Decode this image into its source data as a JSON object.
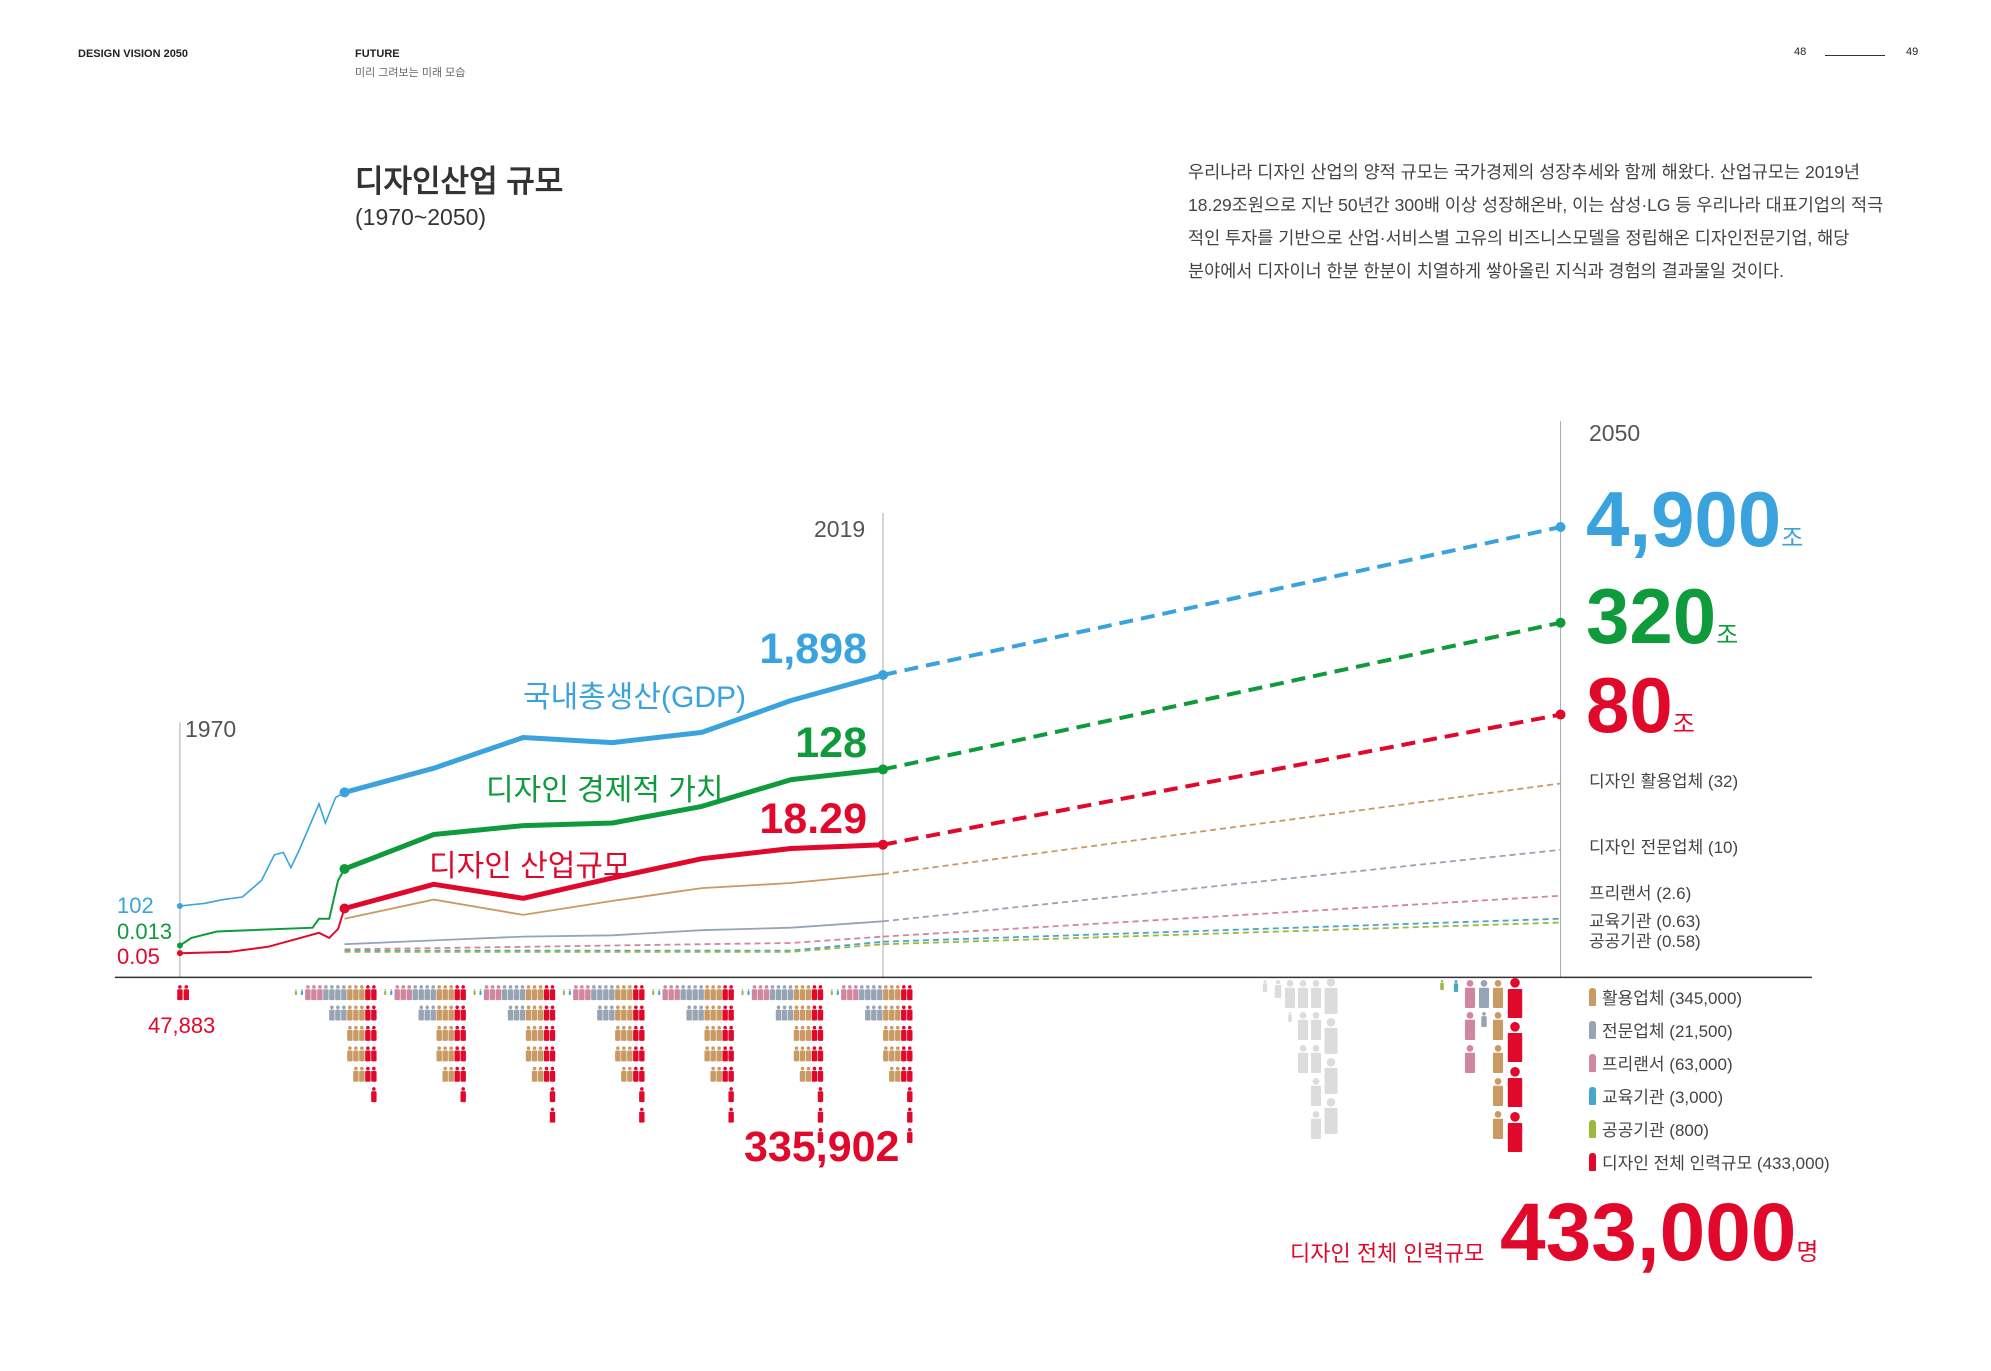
{
  "header": {
    "brand": "DESIGN VISION 2050",
    "section": "FUTURE",
    "section_sub": "미리 그려보는 미래 모습",
    "page_left": "48",
    "page_right": "49"
  },
  "title": "디자인산업 규모",
  "subtitle": "(1970~2050)",
  "paragraph": [
    "우리나라 디자인 산업의 양적 규모는 국가경제의 성장추세와 함께 해왔다. 산업규모는 2019년",
    "18.29조원으로 지난 50년간 300배 이상 성장해온바, 이는 삼성·LG 등 우리나라 대표기업의 적극",
    "적인 투자를 기반으로 산업·서비스별 고유의 비즈니스모델을 정립해온 디자인전문기업, 해당",
    "분야에서 디자이너 한분 한분이 치열하게 쌓아올린 지식과 경험의 결과물일 것이다."
  ],
  "colors": {
    "gdp": "#3aa3dd",
    "econ": "#0f9a3c",
    "industry": "#e0092b",
    "usage": "#c99a63",
    "expert": "#97a4b4",
    "freelance": "#d0869f",
    "edu": "#47a7c9",
    "public": "#9cb83f",
    "ghost": "#dcdcdc"
  },
  "chart_data": {
    "type": "line",
    "title": "디자인산업 규모",
    "xlabel": "",
    "ylabel": "조원",
    "x_markers": [
      "1970",
      "2019",
      "2050"
    ],
    "unit": "조",
    "series": [
      {
        "key": "gdp",
        "name": "국내총생산(GDP)",
        "start_label": "102",
        "values": {
          "1970": 102,
          "2019": 1898,
          "2050": 4900
        },
        "labels": {
          "2019": "1,898",
          "2050": "4,900"
        }
      },
      {
        "key": "econ",
        "name": "디자인 경제적 가치",
        "start_label": "0.013",
        "values": {
          "1970": 0.013,
          "2019": 128,
          "2050": 320
        },
        "labels": {
          "2019": "128",
          "2050": "320"
        }
      },
      {
        "key": "industry",
        "name": "디자인 산업규모",
        "start_label": "0.05",
        "values": {
          "1970": 0.05,
          "2019": 18.29,
          "2050": 80
        },
        "labels": {
          "2019": "18.29",
          "2050": "80"
        }
      }
    ],
    "sub_series": [
      {
        "key": "usage",
        "name": "디자인 활용업체 (32)",
        "value_2050": 32
      },
      {
        "key": "expert",
        "name": "디자인 전문업체 (10)",
        "value_2050": 10
      },
      {
        "key": "freelance",
        "name": "프리랜서 (2.6)",
        "value_2050": 2.6
      },
      {
        "key": "edu",
        "name": "교육기관 (0.63)",
        "value_2050": 0.63
      },
      {
        "key": "public",
        "name": "공공기관 (0.58)",
        "value_2050": 0.58
      }
    ],
    "workforce": {
      "label_1970": "47,883",
      "label_2019": "335,902",
      "total_label": "디자인 전체 인력규모",
      "total_value": "433,000",
      "total_unit": "명",
      "legend": [
        {
          "key": "usage",
          "label": "활용업체 (345,000)"
        },
        {
          "key": "expert",
          "label": "전문업체 (21,500)"
        },
        {
          "key": "freelance",
          "label": "프리랜서 (63,000)"
        },
        {
          "key": "edu",
          "label": "교육기관 (3,000)"
        },
        {
          "key": "public",
          "label": "공공기관 (800)"
        },
        {
          "key": "industry",
          "label": "디자인 전체 인력규모 (433,000)"
        }
      ]
    }
  }
}
